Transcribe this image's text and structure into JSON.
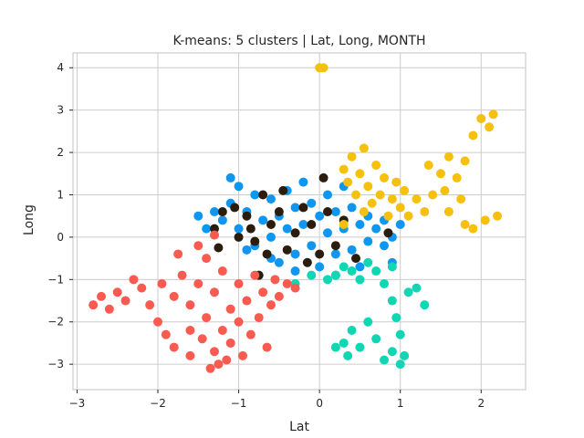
{
  "chart_data": {
    "type": "scatter",
    "title": "K-means: 5 clusters | Lat, Long, MONTH",
    "xlabel": "Lat",
    "ylabel": "Long",
    "xlim": [
      -3.05,
      2.55
    ],
    "ylim": [
      -3.6,
      4.35
    ],
    "x_ticks": [
      -3,
      -2,
      -1,
      0,
      1,
      2
    ],
    "y_ticks": [
      -3,
      -2,
      -1,
      0,
      1,
      2,
      3,
      4
    ],
    "x_tick_labels": [
      "−3",
      "−2",
      "−1",
      "0",
      "1",
      "2"
    ],
    "y_tick_labels": [
      "−3",
      "−2",
      "−1",
      "0",
      "1",
      "2",
      "3",
      "4"
    ],
    "grid": true,
    "legend": "none",
    "series": [
      {
        "color": "#0f96f0",
        "points": [
          [
            -1.3,
            0.6
          ],
          [
            -1.2,
            0.4
          ],
          [
            -1.1,
            0.8
          ],
          [
            -1.0,
            1.2
          ],
          [
            -1.0,
            0.2
          ],
          [
            -0.9,
            0.6
          ],
          [
            -0.8,
            1.0
          ],
          [
            -0.8,
            -0.2
          ],
          [
            -0.7,
            0.4
          ],
          [
            -0.6,
            0.9
          ],
          [
            -0.6,
            0.0
          ],
          [
            -0.5,
            0.5
          ],
          [
            -0.5,
            -0.6
          ],
          [
            -0.4,
            1.1
          ],
          [
            -0.4,
            0.2
          ],
          [
            -0.3,
            0.7
          ],
          [
            -0.3,
            -0.4
          ],
          [
            -0.2,
            0.3
          ],
          [
            -0.2,
            1.3
          ],
          [
            -0.1,
            0.8
          ],
          [
            -0.1,
            -0.2
          ],
          [
            0.0,
            0.5
          ],
          [
            0.0,
            -0.7
          ],
          [
            0.1,
            1.0
          ],
          [
            0.1,
            0.1
          ],
          [
            0.2,
            0.6
          ],
          [
            0.2,
            -0.4
          ],
          [
            0.3,
            0.2
          ],
          [
            0.3,
            1.2
          ],
          [
            0.4,
            0.7
          ],
          [
            0.4,
            -0.3
          ],
          [
            0.5,
            0.3
          ],
          [
            0.5,
            -0.7
          ],
          [
            0.6,
            0.5
          ],
          [
            0.6,
            -0.1
          ],
          [
            0.7,
            0.2
          ],
          [
            0.8,
            -0.2
          ],
          [
            0.9,
            0.0
          ],
          [
            1.0,
            0.3
          ],
          [
            -1.5,
            0.5
          ],
          [
            -1.4,
            0.2
          ],
          [
            -0.9,
            -0.3
          ],
          [
            -1.1,
            1.4
          ],
          [
            -0.3,
            -0.8
          ],
          [
            0.2,
            -0.9
          ],
          [
            0.8,
            0.4
          ],
          [
            -0.6,
            -0.5
          ],
          [
            0.9,
            -0.6
          ]
        ]
      },
      {
        "color": "#2b1d0e",
        "points": [
          [
            -1.3,
            0.2
          ],
          [
            -1.2,
            0.6
          ],
          [
            -1.0,
            0.0
          ],
          [
            -0.9,
            0.5
          ],
          [
            -0.8,
            -0.1
          ],
          [
            -0.7,
            1.0
          ],
          [
            -0.6,
            0.3
          ],
          [
            -0.5,
            0.6
          ],
          [
            -0.4,
            -0.3
          ],
          [
            -0.3,
            0.1
          ],
          [
            -0.2,
            0.7
          ],
          [
            -0.1,
            0.3
          ],
          [
            0.0,
            -0.4
          ],
          [
            0.1,
            0.6
          ],
          [
            0.2,
            -0.2
          ],
          [
            0.3,
            0.4
          ],
          [
            -1.25,
            -0.25
          ],
          [
            -0.85,
            0.2
          ],
          [
            -0.65,
            -0.4
          ],
          [
            -0.45,
            1.1
          ],
          [
            -0.15,
            -0.6
          ],
          [
            0.05,
            1.4
          ],
          [
            0.45,
            -0.5
          ],
          [
            0.85,
            0.1
          ],
          [
            -0.75,
            -0.9
          ],
          [
            -1.05,
            0.7
          ]
        ]
      },
      {
        "color": "#f5c10e",
        "points": [
          [
            0.3,
            1.6
          ],
          [
            0.35,
            1.3
          ],
          [
            0.4,
            1.9
          ],
          [
            0.45,
            1.0
          ],
          [
            0.5,
            1.5
          ],
          [
            0.55,
            0.6
          ],
          [
            0.6,
            1.2
          ],
          [
            0.65,
            0.8
          ],
          [
            0.7,
            1.7
          ],
          [
            0.75,
            1.0
          ],
          [
            0.8,
            1.4
          ],
          [
            0.85,
            0.5
          ],
          [
            0.9,
            0.9
          ],
          [
            0.95,
            1.3
          ],
          [
            1.0,
            0.7
          ],
          [
            1.05,
            1.1
          ],
          [
            1.1,
            0.5
          ],
          [
            1.2,
            0.9
          ],
          [
            1.3,
            0.6
          ],
          [
            1.4,
            1.0
          ],
          [
            1.5,
            1.5
          ],
          [
            1.6,
            1.9
          ],
          [
            1.7,
            1.4
          ],
          [
            1.8,
            1.8
          ],
          [
            1.9,
            2.4
          ],
          [
            2.0,
            2.8
          ],
          [
            2.1,
            2.6
          ],
          [
            2.15,
            2.9
          ],
          [
            1.6,
            0.6
          ],
          [
            1.8,
            0.3
          ],
          [
            1.9,
            0.2
          ],
          [
            2.05,
            0.4
          ],
          [
            2.2,
            0.5
          ],
          [
            0.0,
            4.0
          ],
          [
            0.05,
            4.0
          ],
          [
            0.3,
            0.3
          ],
          [
            1.35,
            1.7
          ],
          [
            1.55,
            1.1
          ],
          [
            1.75,
            0.9
          ],
          [
            0.55,
            2.1
          ]
        ]
      },
      {
        "color": "#10d6b4",
        "points": [
          [
            0.2,
            -0.9
          ],
          [
            0.3,
            -0.7
          ],
          [
            0.4,
            -0.8
          ],
          [
            0.5,
            -1.0
          ],
          [
            0.6,
            -0.6
          ],
          [
            0.7,
            -0.8
          ],
          [
            0.8,
            -1.1
          ],
          [
            0.9,
            -0.7
          ],
          [
            0.9,
            -1.5
          ],
          [
            0.95,
            -1.9
          ],
          [
            1.0,
            -2.3
          ],
          [
            0.9,
            -2.7
          ],
          [
            0.8,
            -2.9
          ],
          [
            0.7,
            -2.4
          ],
          [
            0.6,
            -2.0
          ],
          [
            0.5,
            -2.6
          ],
          [
            0.4,
            -2.2
          ],
          [
            0.35,
            -2.8
          ],
          [
            0.3,
            -2.5
          ],
          [
            0.2,
            -2.6
          ],
          [
            1.1,
            -1.3
          ],
          [
            1.2,
            -1.2
          ],
          [
            1.3,
            -1.6
          ],
          [
            1.05,
            -2.8
          ],
          [
            -0.1,
            -0.9
          ],
          [
            -0.3,
            -1.1
          ],
          [
            0.1,
            -1.0
          ],
          [
            1.0,
            -3.0
          ]
        ]
      },
      {
        "color": "#fa5b50",
        "points": [
          [
            -2.8,
            -1.6
          ],
          [
            -2.7,
            -1.4
          ],
          [
            -2.6,
            -1.7
          ],
          [
            -2.5,
            -1.3
          ],
          [
            -2.4,
            -1.5
          ],
          [
            -2.3,
            -1.0
          ],
          [
            -2.2,
            -1.2
          ],
          [
            -2.1,
            -1.6
          ],
          [
            -2.0,
            -2.0
          ],
          [
            -1.95,
            -1.1
          ],
          [
            -1.9,
            -2.3
          ],
          [
            -1.8,
            -2.6
          ],
          [
            -1.8,
            -1.4
          ],
          [
            -1.7,
            -0.9
          ],
          [
            -1.6,
            -2.8
          ],
          [
            -1.6,
            -1.6
          ],
          [
            -1.5,
            -0.2
          ],
          [
            -1.5,
            -1.1
          ],
          [
            -1.45,
            -2.4
          ],
          [
            -1.4,
            -1.9
          ],
          [
            -1.4,
            -0.5
          ],
          [
            -1.35,
            -3.1
          ],
          [
            -1.3,
            -2.7
          ],
          [
            -1.3,
            -1.3
          ],
          [
            -1.2,
            -2.2
          ],
          [
            -1.2,
            -0.8
          ],
          [
            -1.15,
            -2.9
          ],
          [
            -1.1,
            -1.7
          ],
          [
            -1.1,
            -2.5
          ],
          [
            -1.0,
            -1.1
          ],
          [
            -1.0,
            -2.0
          ],
          [
            -0.95,
            -2.8
          ],
          [
            -0.9,
            -1.5
          ],
          [
            -0.85,
            -2.3
          ],
          [
            -0.8,
            -0.9
          ],
          [
            -0.75,
            -1.9
          ],
          [
            -0.7,
            -1.3
          ],
          [
            -0.6,
            -1.6
          ],
          [
            -0.55,
            -1.0
          ],
          [
            -0.5,
            -1.4
          ],
          [
            -0.4,
            -1.1
          ],
          [
            -0.3,
            -1.2
          ],
          [
            -1.25,
            -3.0
          ],
          [
            -1.6,
            -2.2
          ],
          [
            -1.75,
            -0.4
          ],
          [
            -1.3,
            0.05
          ],
          [
            -0.65,
            -2.6
          ]
        ]
      }
    ]
  }
}
